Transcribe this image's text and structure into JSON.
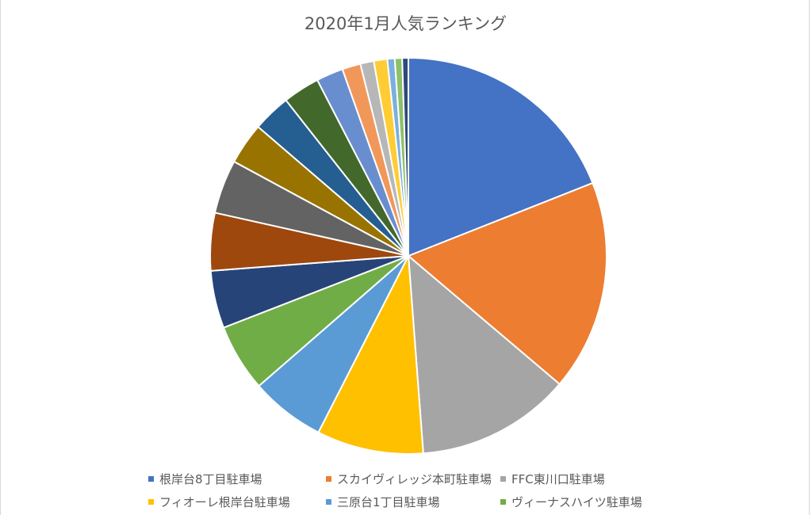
{
  "chart_data": {
    "type": "pie",
    "title": "2020年1月人気ランキング",
    "legend_position": "bottom",
    "slices": [
      {
        "label": "根岸台8丁目駐車場",
        "value": 19.0,
        "color": "#4472c4"
      },
      {
        "label": "スカイヴィレッジ本町駐車場",
        "value": 17.2,
        "color": "#ed7d31"
      },
      {
        "label": "FFC東川口駐車場",
        "value": 12.6,
        "color": "#a5a5a5"
      },
      {
        "label": "フィオーレ根岸台駐車場",
        "value": 8.7,
        "color": "#ffc000"
      },
      {
        "label": "三原台1丁目駐車場",
        "value": 6.1,
        "color": "#5b9bd5"
      },
      {
        "label": "ヴィーナスハイツ駐車場",
        "value": 5.5,
        "color": "#70ad47"
      },
      {
        "label": "",
        "value": 4.7,
        "color": "#264478"
      },
      {
        "label": "",
        "value": 4.7,
        "color": "#9e480e"
      },
      {
        "label": "",
        "value": 4.4,
        "color": "#636363"
      },
      {
        "label": "",
        "value": 3.4,
        "color": "#997300"
      },
      {
        "label": "",
        "value": 3.1,
        "color": "#255e91"
      },
      {
        "label": "",
        "value": 3.0,
        "color": "#43682b"
      },
      {
        "label": "",
        "value": 2.2,
        "color": "#698ed0"
      },
      {
        "label": "",
        "value": 1.5,
        "color": "#f1975a"
      },
      {
        "label": "",
        "value": 1.1,
        "color": "#b7b7b7"
      },
      {
        "label": "",
        "value": 1.1,
        "color": "#ffcd33"
      },
      {
        "label": "",
        "value": 0.6,
        "color": "#7cafdd"
      },
      {
        "label": "",
        "value": 0.6,
        "color": "#8cc168"
      },
      {
        "label": "",
        "value": 0.5,
        "color": "#2e4a78"
      }
    ],
    "legend": [
      {
        "label": "根岸台8丁目駐車場",
        "color": "#4472c4"
      },
      {
        "label": "スカイヴィレッジ本町駐車場",
        "color": "#ed7d31"
      },
      {
        "label": "FFC東川口駐車場",
        "color": "#a5a5a5"
      },
      {
        "label": "フィオーレ根岸台駐車場",
        "color": "#ffc000"
      },
      {
        "label": "三原台1丁目駐車場",
        "color": "#5b9bd5"
      },
      {
        "label": "ヴィーナスハイツ駐車場",
        "color": "#70ad47"
      }
    ]
  }
}
